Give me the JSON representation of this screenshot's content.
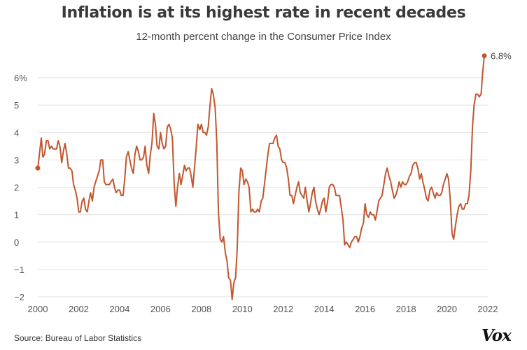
{
  "header": {
    "title": "Inflation is at its highest rate in recent decades",
    "subtitle": "12-month percent change in the Consumer Price Index"
  },
  "footer": {
    "source": "Source: Bureau of Labor Statistics",
    "logo": "Vox"
  },
  "colors": {
    "line": "#c1572f",
    "grid": "#e2e2e2",
    "text": "#555555"
  },
  "chart_data": {
    "type": "line",
    "title": "Inflation is at its highest rate in recent decades",
    "subtitle": "12-month percent change in the Consumer Price Index",
    "xlabel": "",
    "ylabel": "",
    "xlim": [
      2000,
      2022
    ],
    "ylim": [
      -2,
      6
    ],
    "grid": true,
    "y_ticks": [
      6,
      5,
      4,
      3,
      2,
      1,
      0,
      -1,
      -2
    ],
    "y_tick_labels": [
      "6%",
      "5",
      "4",
      "3",
      "2",
      "1",
      "0",
      "−1",
      "−2"
    ],
    "x_ticks": [
      2000,
      2002,
      2004,
      2006,
      2008,
      2010,
      2012,
      2014,
      2016,
      2018,
      2020,
      2022
    ],
    "x_tick_labels": [
      "2000",
      "2002",
      "2004",
      "2006",
      "2008",
      "2010",
      "2012",
      "2014",
      "2016",
      "2018",
      "2020",
      "2022"
    ],
    "series": [
      {
        "name": "CPI 12-month percent change",
        "x": [
          2000.0,
          2000.08,
          2000.17,
          2000.25,
          2000.33,
          2000.42,
          2000.5,
          2000.58,
          2000.67,
          2000.75,
          2000.83,
          2000.92,
          2001.0,
          2001.08,
          2001.17,
          2001.25,
          2001.33,
          2001.42,
          2001.5,
          2001.58,
          2001.67,
          2001.75,
          2001.83,
          2001.92,
          2002.0,
          2002.08,
          2002.17,
          2002.25,
          2002.33,
          2002.42,
          2002.5,
          2002.58,
          2002.67,
          2002.75,
          2002.83,
          2002.92,
          2003.0,
          2003.08,
          2003.17,
          2003.25,
          2003.33,
          2003.42,
          2003.5,
          2003.58,
          2003.67,
          2003.75,
          2003.83,
          2003.92,
          2004.0,
          2004.08,
          2004.17,
          2004.25,
          2004.33,
          2004.42,
          2004.5,
          2004.58,
          2004.67,
          2004.75,
          2004.83,
          2004.92,
          2005.0,
          2005.08,
          2005.17,
          2005.25,
          2005.33,
          2005.42,
          2005.5,
          2005.58,
          2005.67,
          2005.75,
          2005.83,
          2005.92,
          2006.0,
          2006.08,
          2006.17,
          2006.25,
          2006.33,
          2006.42,
          2006.5,
          2006.58,
          2006.67,
          2006.75,
          2006.83,
          2006.92,
          2007.0,
          2007.08,
          2007.17,
          2007.25,
          2007.33,
          2007.42,
          2007.5,
          2007.58,
          2007.67,
          2007.75,
          2007.83,
          2007.92,
          2008.0,
          2008.08,
          2008.17,
          2008.25,
          2008.33,
          2008.42,
          2008.5,
          2008.58,
          2008.67,
          2008.75,
          2008.83,
          2008.92,
          2009.0,
          2009.08,
          2009.17,
          2009.25,
          2009.33,
          2009.42,
          2009.5,
          2009.58,
          2009.67,
          2009.75,
          2009.83,
          2009.92,
          2010.0,
          2010.08,
          2010.17,
          2010.25,
          2010.33,
          2010.42,
          2010.5,
          2010.58,
          2010.67,
          2010.75,
          2010.83,
          2010.92,
          2011.0,
          2011.08,
          2011.17,
          2011.25,
          2011.33,
          2011.42,
          2011.5,
          2011.58,
          2011.67,
          2011.75,
          2011.83,
          2011.92,
          2012.0,
          2012.08,
          2012.17,
          2012.25,
          2012.33,
          2012.42,
          2012.5,
          2012.58,
          2012.67,
          2012.75,
          2012.83,
          2012.92,
          2013.0,
          2013.08,
          2013.17,
          2013.25,
          2013.33,
          2013.42,
          2013.5,
          2013.58,
          2013.67,
          2013.75,
          2013.83,
          2013.92,
          2014.0,
          2014.08,
          2014.17,
          2014.25,
          2014.33,
          2014.42,
          2014.5,
          2014.58,
          2014.67,
          2014.75,
          2014.83,
          2014.92,
          2015.0,
          2015.08,
          2015.17,
          2015.25,
          2015.33,
          2015.42,
          2015.5,
          2015.58,
          2015.67,
          2015.75,
          2015.83,
          2015.92,
          2016.0,
          2016.08,
          2016.17,
          2016.25,
          2016.33,
          2016.42,
          2016.5,
          2016.58,
          2016.67,
          2016.75,
          2016.83,
          2016.92,
          2017.0,
          2017.08,
          2017.17,
          2017.25,
          2017.33,
          2017.42,
          2017.5,
          2017.58,
          2017.67,
          2017.75,
          2017.83,
          2017.92,
          2018.0,
          2018.08,
          2018.17,
          2018.25,
          2018.33,
          2018.42,
          2018.5,
          2018.58,
          2018.67,
          2018.75,
          2018.83,
          2018.92,
          2019.0,
          2019.08,
          2019.17,
          2019.25,
          2019.33,
          2019.42,
          2019.5,
          2019.58,
          2019.67,
          2019.75,
          2019.83,
          2019.92,
          2020.0,
          2020.08,
          2020.17,
          2020.25,
          2020.33,
          2020.42,
          2020.5,
          2020.58,
          2020.67,
          2020.75,
          2020.83,
          2020.92,
          2021.0,
          2021.08,
          2021.17,
          2021.25,
          2021.33,
          2021.42,
          2021.5,
          2021.58,
          2021.67,
          2021.75,
          2021.83
        ],
        "values": [
          2.7,
          3.2,
          3.8,
          3.1,
          3.2,
          3.7,
          3.7,
          3.4,
          3.5,
          3.4,
          3.4,
          3.4,
          3.7,
          3.5,
          2.9,
          3.3,
          3.6,
          3.2,
          2.7,
          2.7,
          2.6,
          2.1,
          1.9,
          1.6,
          1.1,
          1.1,
          1.5,
          1.6,
          1.2,
          1.1,
          1.5,
          1.8,
          1.5,
          2.0,
          2.2,
          2.4,
          2.6,
          3.0,
          3.0,
          2.2,
          2.1,
          2.1,
          2.1,
          2.2,
          2.3,
          2.0,
          1.8,
          1.9,
          1.9,
          1.7,
          1.7,
          2.3,
          3.1,
          3.3,
          3.0,
          2.7,
          2.5,
          3.2,
          3.5,
          3.3,
          3.0,
          3.0,
          3.1,
          3.5,
          2.8,
          2.5,
          3.2,
          3.6,
          4.7,
          4.3,
          3.5,
          3.4,
          4.0,
          3.6,
          3.4,
          3.5,
          4.2,
          4.3,
          4.1,
          3.8,
          2.1,
          1.3,
          2.0,
          2.5,
          2.1,
          2.4,
          2.8,
          2.6,
          2.7,
          2.7,
          2.4,
          2.0,
          2.8,
          3.5,
          4.3,
          4.1,
          4.3,
          4.0,
          4.0,
          3.9,
          4.2,
          5.0,
          5.6,
          5.4,
          4.9,
          3.7,
          1.1,
          0.1,
          0.0,
          0.2,
          -0.4,
          -0.7,
          -1.3,
          -1.4,
          -2.1,
          -1.5,
          -1.3,
          -0.2,
          1.8,
          2.7,
          2.6,
          2.1,
          2.3,
          2.2,
          2.0,
          1.1,
          1.2,
          1.1,
          1.1,
          1.2,
          1.1,
          1.5,
          1.6,
          2.1,
          2.7,
          3.2,
          3.6,
          3.6,
          3.6,
          3.8,
          3.9,
          3.5,
          3.4,
          3.0,
          2.9,
          2.9,
          2.7,
          2.3,
          1.7,
          1.7,
          1.4,
          1.7,
          2.0,
          2.2,
          1.8,
          1.7,
          1.6,
          2.0,
          1.5,
          1.1,
          1.4,
          1.8,
          2.0,
          1.5,
          1.2,
          1.0,
          1.2,
          1.5,
          1.6,
          1.1,
          1.5,
          2.0,
          2.1,
          2.1,
          2.0,
          1.7,
          1.7,
          1.7,
          1.3,
          0.8,
          -0.1,
          0.0,
          -0.1,
          -0.2,
          0.0,
          0.1,
          0.2,
          0.2,
          0.0,
          0.2,
          0.5,
          0.7,
          1.4,
          1.0,
          0.9,
          1.1,
          1.0,
          1.0,
          0.8,
          1.1,
          1.5,
          1.6,
          1.7,
          2.1,
          2.5,
          2.7,
          2.4,
          2.2,
          1.9,
          1.6,
          1.7,
          1.9,
          2.2,
          2.0,
          2.2,
          2.1,
          2.1,
          2.2,
          2.4,
          2.5,
          2.8,
          2.9,
          2.9,
          2.7,
          2.3,
          2.5,
          2.2,
          1.9,
          1.6,
          1.5,
          1.9,
          2.0,
          1.8,
          1.6,
          1.8,
          1.7,
          1.7,
          1.8,
          2.1,
          2.3,
          2.5,
          2.3,
          1.5,
          0.3,
          0.1,
          0.6,
          1.0,
          1.3,
          1.4,
          1.2,
          1.2,
          1.4,
          1.4,
          1.7,
          2.6,
          4.2,
          5.0,
          5.4,
          5.4,
          5.3,
          5.4,
          6.2,
          6.8
        ]
      }
    ],
    "start_point": {
      "x": 2000.0,
      "y": 2.7
    },
    "annotations": [
      {
        "x": 2021.83,
        "y": 6.8,
        "text": "6.8%"
      }
    ]
  }
}
